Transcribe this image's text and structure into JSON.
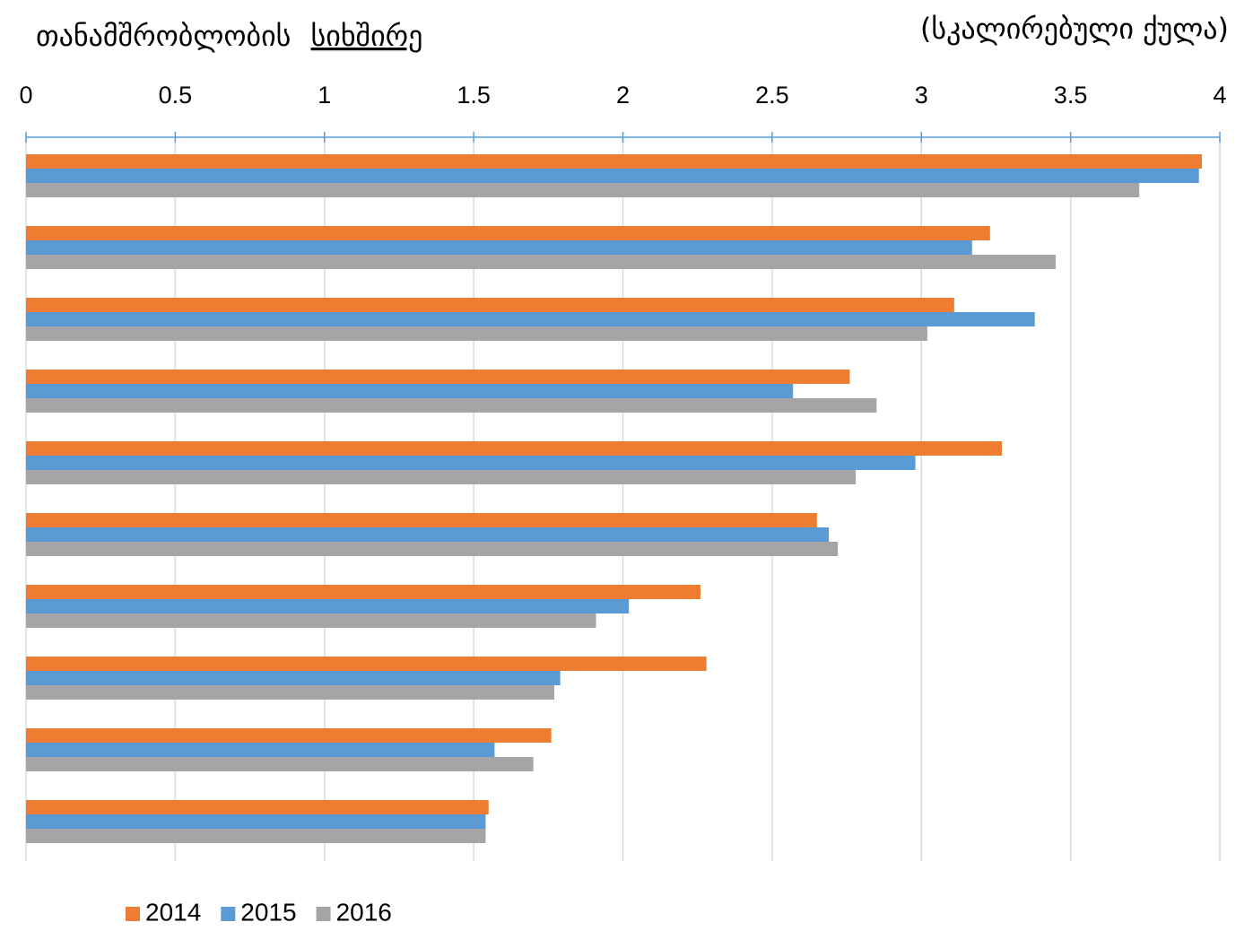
{
  "chart_data": {
    "type": "barh",
    "title": "თანამშრობლობის",
    "title_emphasis": "სიხშირე",
    "subtitle": "(სკალირებული ქულა)",
    "categories": [
      null,
      null,
      null,
      null,
      null,
      null,
      null,
      null,
      null,
      null
    ],
    "series": [
      {
        "name": "2014",
        "color": "#ed7d31",
        "values": [
          3.94,
          3.23,
          3.11,
          2.76,
          3.27,
          2.65,
          2.26,
          2.28,
          1.76,
          1.55
        ]
      },
      {
        "name": "2015",
        "color": "#5b9bd5",
        "values": [
          3.93,
          3.17,
          3.38,
          2.57,
          2.98,
          2.69,
          2.02,
          1.79,
          1.57,
          1.54
        ]
      },
      {
        "name": "2016",
        "color": "#a5a5a5",
        "values": [
          3.73,
          3.45,
          3.02,
          2.85,
          2.78,
          2.72,
          1.91,
          1.77,
          1.7,
          1.54
        ]
      }
    ],
    "xlim": [
      0,
      4
    ],
    "xticks": [
      0,
      0.5,
      1,
      1.5,
      2,
      2.5,
      3,
      3.5,
      4
    ],
    "grid": true,
    "legend": "bottom"
  }
}
